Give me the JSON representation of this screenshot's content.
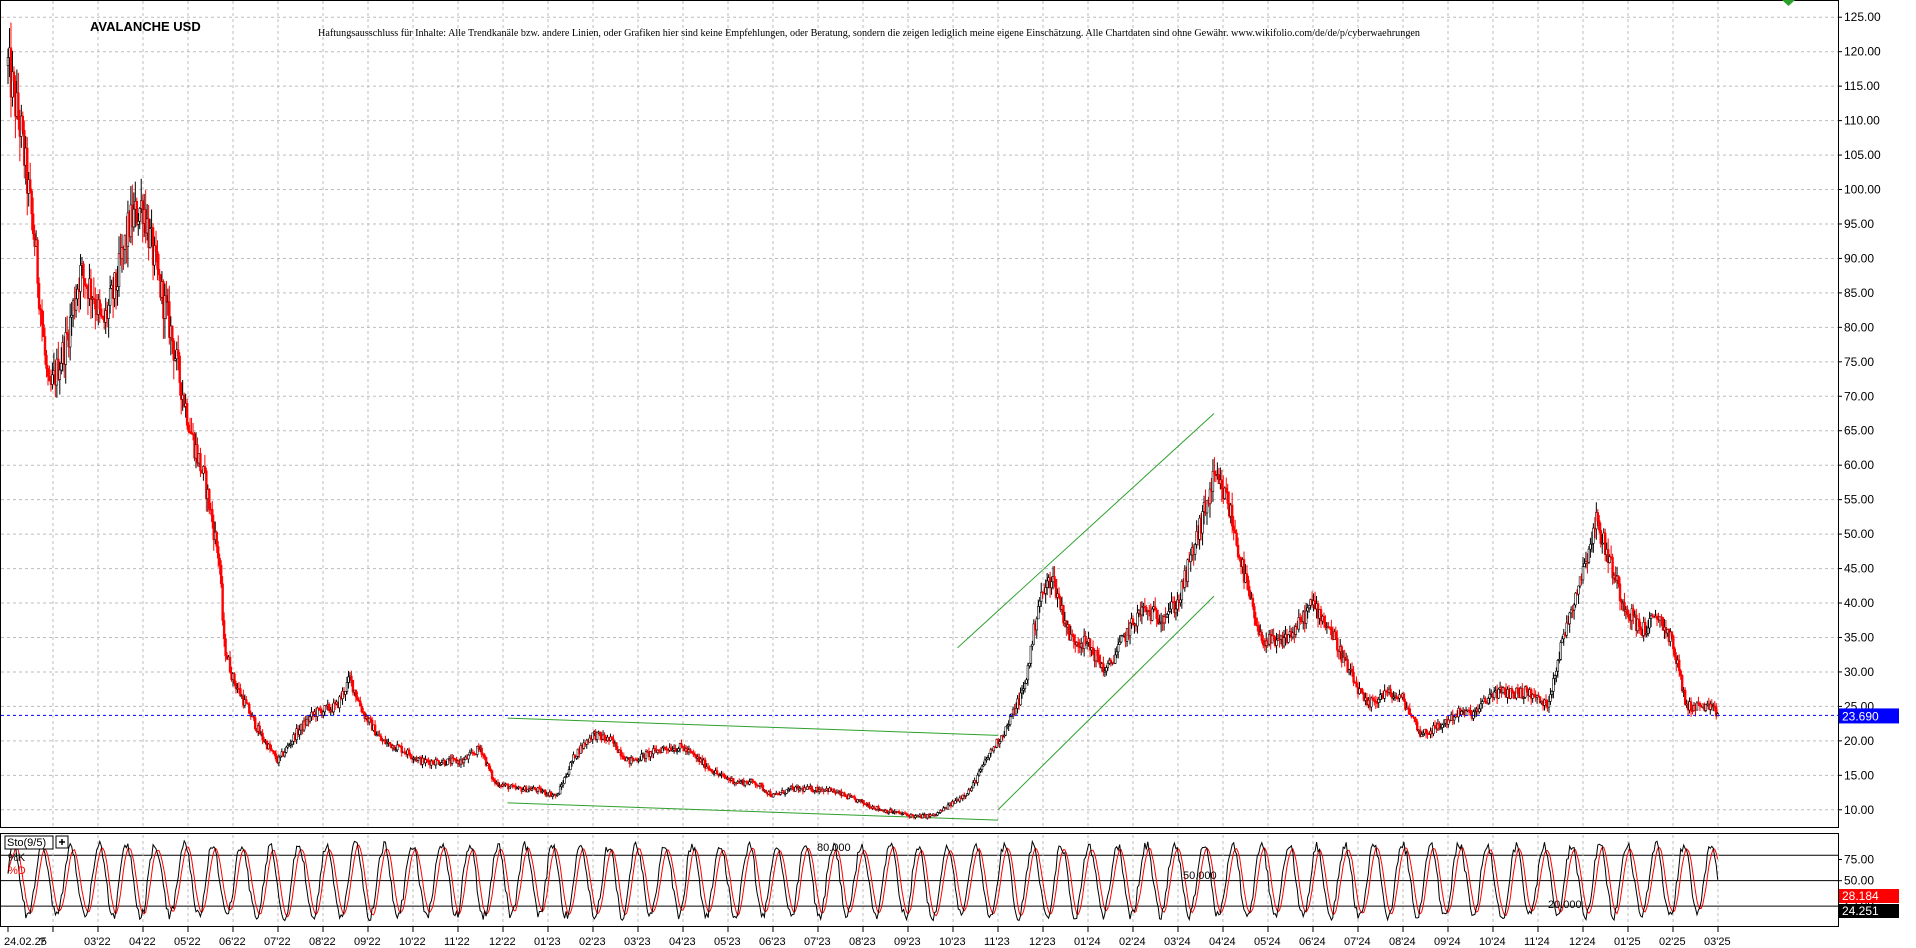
{
  "chart_data": {
    "type": "candlestick",
    "title": "AVALANCHE USD",
    "disclaimer": "Haftungsausschluss für Inhalte: Alle Trendkanäle bzw. andere Linien, oder Grafiken hier sind keine Empfehlungen, oder Beratung, sondern die zeigen lediglich meine eigene Einschätzung. Alle Chartdaten sind ohne Gewähr. www.wikifolio.com/de/de/p/cyberwaehrungen",
    "ylim": [
      7.5,
      127.5
    ],
    "y_ticks": [
      "125.00",
      "120.00",
      "115.00",
      "110.00",
      "105.00",
      "100.00",
      "95.00",
      "90.00",
      "85.00",
      "80.00",
      "75.00",
      "70.00",
      "65.00",
      "60.00",
      "55.00",
      "50.00",
      "45.00",
      "40.00",
      "35.00",
      "30.00",
      "25.00",
      "20.00",
      "15.00",
      "10.00"
    ],
    "x_ticks": [
      "24.02.25",
      "?",
      "03'22",
      "04'22",
      "05'22",
      "06'22",
      "07'22",
      "08'22",
      "09'22",
      "10'22",
      "11'22",
      "12'22",
      "01'23",
      "02'23",
      "03'23",
      "04'23",
      "05'23",
      "06'23",
      "07'23",
      "08'23",
      "09'23",
      "10'23",
      "11'23",
      "12'23",
      "01'24",
      "02'24",
      "03'24",
      "04'24",
      "05'24",
      "06'24",
      "07'24",
      "08'24",
      "09'24",
      "10'24",
      "11'24",
      "12'24",
      "01'25",
      "02'25",
      "03'25"
    ],
    "price_path": [
      [
        0,
        118
      ],
      [
        0.3,
        108
      ],
      [
        0.6,
        92
      ],
      [
        0.9,
        70
      ],
      [
        1.3,
        78
      ],
      [
        1.6,
        88
      ],
      [
        1.9,
        85
      ],
      [
        2.1,
        80
      ],
      [
        2.4,
        86
      ],
      [
        2.7,
        95
      ],
      [
        3.0,
        98
      ],
      [
        3.3,
        88
      ],
      [
        3.6,
        80
      ],
      [
        3.8,
        73
      ],
      [
        4.1,
        64
      ],
      [
        4.4,
        57
      ],
      [
        4.7,
        46
      ],
      [
        4.8,
        34
      ],
      [
        5.0,
        29
      ],
      [
        5.3,
        25
      ],
      [
        5.6,
        21
      ],
      [
        6.0,
        17
      ],
      [
        6.4,
        21
      ],
      [
        6.8,
        24
      ],
      [
        7.3,
        25
      ],
      [
        7.6,
        29
      ],
      [
        7.9,
        24
      ],
      [
        8.3,
        20
      ],
      [
        8.7,
        19
      ],
      [
        9.2,
        17
      ],
      [
        9.6,
        17
      ],
      [
        10.1,
        17
      ],
      [
        10.5,
        19
      ],
      [
        10.8,
        14
      ],
      [
        11.3,
        13
      ],
      [
        11.7,
        13
      ],
      [
        12.2,
        12
      ],
      [
        12.6,
        18
      ],
      [
        13.0,
        21
      ],
      [
        13.4,
        20
      ],
      [
        13.8,
        17
      ],
      [
        14.2,
        18
      ],
      [
        14.6,
        19
      ],
      [
        15.0,
        19
      ],
      [
        15.4,
        17
      ],
      [
        15.8,
        15
      ],
      [
        16.2,
        14
      ],
      [
        16.6,
        14
      ],
      [
        17.0,
        12
      ],
      [
        17.4,
        13
      ],
      [
        17.8,
        13
      ],
      [
        18.2,
        13
      ],
      [
        18.6,
        12
      ],
      [
        19.0,
        11
      ],
      [
        19.4,
        10
      ],
      [
        19.8,
        9.5
      ],
      [
        20.2,
        9.0
      ],
      [
        20.6,
        9.2
      ],
      [
        21.0,
        11
      ],
      [
        21.4,
        13
      ],
      [
        21.8,
        18
      ],
      [
        22.2,
        22
      ],
      [
        22.6,
        28
      ],
      [
        22.9,
        40
      ],
      [
        23.2,
        44
      ],
      [
        23.6,
        35
      ],
      [
        24.0,
        34
      ],
      [
        24.4,
        30
      ],
      [
        24.8,
        35
      ],
      [
        25.2,
        39
      ],
      [
        25.6,
        38
      ],
      [
        26.0,
        40
      ],
      [
        26.4,
        49
      ],
      [
        26.8,
        58
      ],
      [
        27.1,
        55
      ],
      [
        27.4,
        46
      ],
      [
        27.8,
        35
      ],
      [
        28.2,
        34
      ],
      [
        28.6,
        36
      ],
      [
        29.0,
        40
      ],
      [
        29.4,
        36
      ],
      [
        29.8,
        30
      ],
      [
        30.2,
        25
      ],
      [
        30.6,
        27
      ],
      [
        31.0,
        26
      ],
      [
        31.4,
        21
      ],
      [
        31.8,
        22
      ],
      [
        32.2,
        24
      ],
      [
        32.6,
        24
      ],
      [
        33.0,
        27
      ],
      [
        33.4,
        27
      ],
      [
        33.8,
        27
      ],
      [
        34.2,
        25
      ],
      [
        34.6,
        36
      ],
      [
        35.0,
        45
      ],
      [
        35.3,
        52
      ],
      [
        35.6,
        46
      ],
      [
        35.9,
        40
      ],
      [
        36.3,
        36
      ],
      [
        36.7,
        38
      ],
      [
        37.0,
        34
      ],
      [
        37.3,
        25
      ],
      [
        37.7,
        25
      ],
      [
        38.0,
        24
      ]
    ],
    "current_price": "23.690",
    "indicator": {
      "name": "Sto(9/5)",
      "series": [
        {
          "name": "%K",
          "color": "#000000"
        },
        {
          "name": "%D",
          "color": "#ff0000"
        }
      ],
      "levels": [
        "80.000",
        "50.000",
        "20.000"
      ],
      "y_ticks": [
        "75.00",
        "50.00",
        "25.00"
      ],
      "k_value": "24.251",
      "d_value": "28.184"
    }
  },
  "colors": {
    "up": "#000000",
    "down": "#ff0000",
    "trendline": "#2ca02c",
    "price_tag_bg": "#0000ff",
    "k_tag_bg": "#000000",
    "d_tag_bg": "#ff0000"
  }
}
